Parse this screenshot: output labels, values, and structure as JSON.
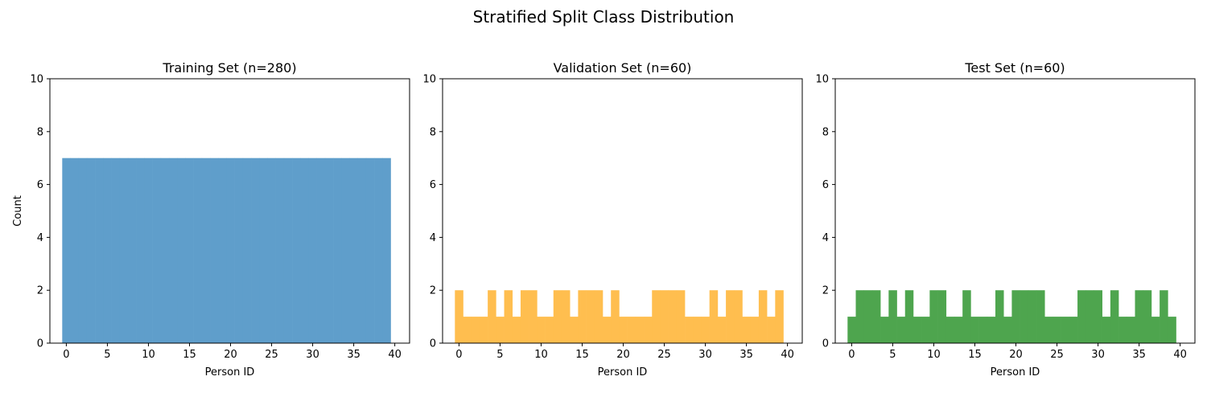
{
  "figure": {
    "title": "Stratified Split Class Distribution"
  },
  "chart_data": [
    {
      "type": "bar",
      "title": "Training Set (n=280)",
      "xlabel": "Person ID",
      "ylabel": "Count",
      "color": "#5f9ecb",
      "xlim": [
        -2,
        41.8
      ],
      "ylim": [
        0,
        10
      ],
      "xticks": [
        0,
        5,
        10,
        15,
        20,
        25,
        30,
        35,
        40
      ],
      "yticks": [
        0,
        2,
        4,
        6,
        8,
        10
      ],
      "x": [
        0,
        1,
        2,
        3,
        4,
        5,
        6,
        7,
        8,
        9,
        10,
        11,
        12,
        13,
        14,
        15,
        16,
        17,
        18,
        19,
        20,
        21,
        22,
        23,
        24,
        25,
        26,
        27,
        28,
        29,
        30,
        31,
        32,
        33,
        34,
        35,
        36,
        37,
        38,
        39
      ],
      "values": [
        7,
        7,
        7,
        7,
        7,
        7,
        7,
        7,
        7,
        7,
        7,
        7,
        7,
        7,
        7,
        7,
        7,
        7,
        7,
        7,
        7,
        7,
        7,
        7,
        7,
        7,
        7,
        7,
        7,
        7,
        7,
        7,
        7,
        7,
        7,
        7,
        7,
        7,
        7,
        7
      ]
    },
    {
      "type": "bar",
      "title": "Validation Set (n=60)",
      "xlabel": "Person ID",
      "ylabel": "",
      "color": "#ffbe4f",
      "xlim": [
        -2,
        41.8
      ],
      "ylim": [
        0,
        10
      ],
      "xticks": [
        0,
        5,
        10,
        15,
        20,
        25,
        30,
        35,
        40
      ],
      "yticks": [
        0,
        2,
        4,
        6,
        8,
        10
      ],
      "x": [
        0,
        1,
        2,
        3,
        4,
        5,
        6,
        7,
        8,
        9,
        10,
        11,
        12,
        13,
        14,
        15,
        16,
        17,
        18,
        19,
        20,
        21,
        22,
        23,
        24,
        25,
        26,
        27,
        28,
        29,
        30,
        31,
        32,
        33,
        34,
        35,
        36,
        37,
        38,
        39
      ],
      "values": [
        2,
        1,
        1,
        1,
        2,
        1,
        2,
        1,
        2,
        2,
        1,
        1,
        2,
        2,
        1,
        2,
        2,
        2,
        1,
        2,
        1,
        1,
        1,
        1,
        2,
        2,
        2,
        2,
        1,
        1,
        1,
        2,
        1,
        2,
        2,
        1,
        1,
        2,
        1,
        2
      ]
    },
    {
      "type": "bar",
      "title": "Test Set (n=60)",
      "xlabel": "Person ID",
      "ylabel": "",
      "color": "#4ea54e",
      "xlim": [
        -2,
        41.8
      ],
      "ylim": [
        0,
        10
      ],
      "xticks": [
        0,
        5,
        10,
        15,
        20,
        25,
        30,
        35,
        40
      ],
      "yticks": [
        0,
        2,
        4,
        6,
        8,
        10
      ],
      "x": [
        0,
        1,
        2,
        3,
        4,
        5,
        6,
        7,
        8,
        9,
        10,
        11,
        12,
        13,
        14,
        15,
        16,
        17,
        18,
        19,
        20,
        21,
        22,
        23,
        24,
        25,
        26,
        27,
        28,
        29,
        30,
        31,
        32,
        33,
        34,
        35,
        36,
        37,
        38,
        39
      ],
      "values": [
        1,
        2,
        2,
        2,
        1,
        2,
        1,
        2,
        1,
        1,
        2,
        2,
        1,
        1,
        2,
        1,
        1,
        1,
        2,
        1,
        2,
        2,
        2,
        2,
        1,
        1,
        1,
        1,
        2,
        2,
        2,
        1,
        2,
        1,
        1,
        2,
        2,
        1,
        2,
        1
      ]
    }
  ]
}
